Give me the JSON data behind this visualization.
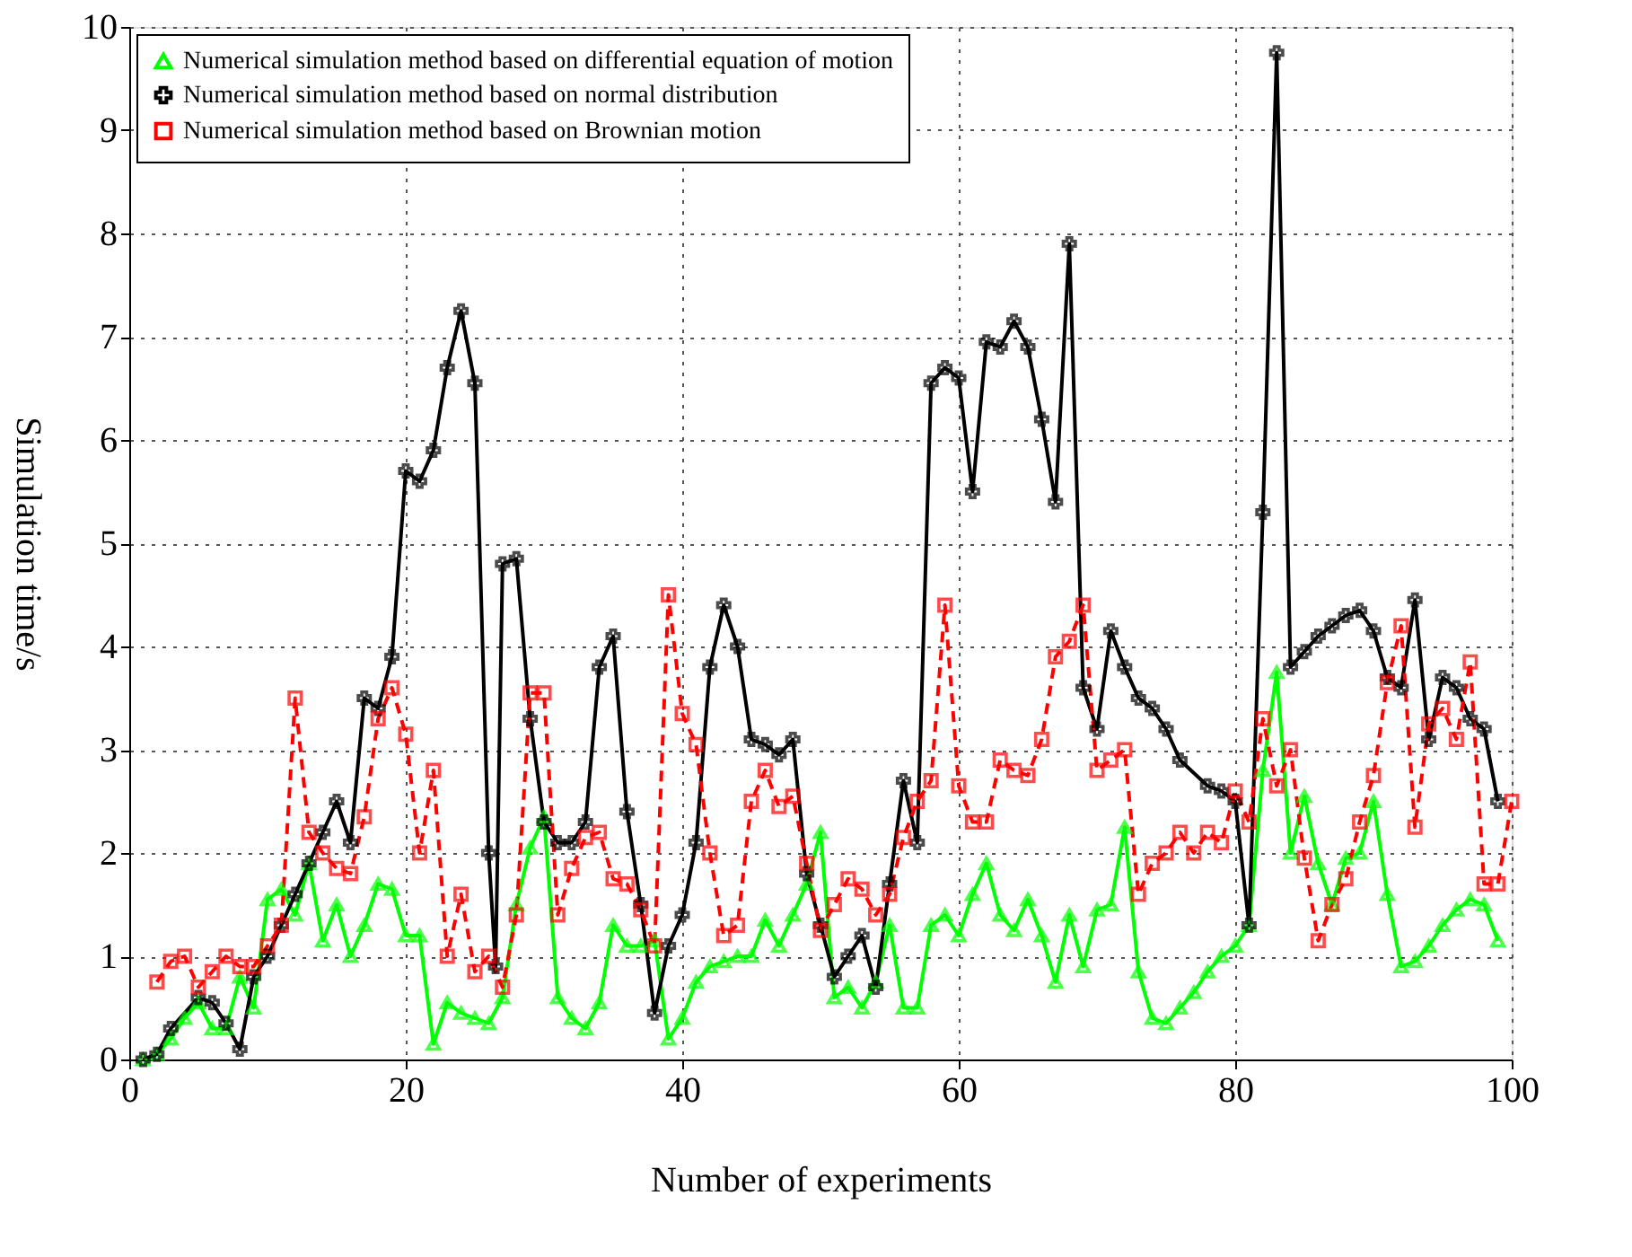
{
  "chart_data": {
    "type": "line",
    "xlabel": "Number of experiments",
    "ylabel": "Simulation time/s",
    "xlim": [
      0,
      100
    ],
    "xticks": [
      0,
      20,
      40,
      60,
      80,
      100
    ],
    "ylim": [
      0,
      10
    ],
    "yticks": [
      0,
      1,
      2,
      3,
      4,
      5,
      6,
      7,
      8,
      9,
      10
    ],
    "grid": true,
    "legend": "top left",
    "series": [
      {
        "name": "Numerical simulation method based on differential equation of motion",
        "color": "#00ff00",
        "marker": "triangle",
        "line_style": "solid",
        "x": [
          1,
          2,
          3,
          4,
          5,
          6,
          7,
          8,
          9,
          10,
          11,
          12,
          13,
          14,
          15,
          16,
          17,
          18,
          19,
          20,
          21,
          22,
          23,
          24,
          25,
          26,
          27,
          28,
          29,
          30,
          31,
          32,
          33,
          34,
          35,
          36,
          37,
          38,
          39,
          40,
          41,
          42,
          43,
          44,
          45,
          46,
          47,
          48,
          49,
          50,
          51,
          52,
          53,
          54,
          55,
          56,
          57,
          58,
          59,
          60,
          61,
          62,
          63,
          64,
          65,
          66,
          67,
          68,
          69,
          70,
          71,
          72,
          73,
          74,
          75,
          76,
          77,
          78,
          79,
          80,
          81,
          82,
          83,
          84,
          85,
          86,
          87,
          88,
          89,
          90,
          91,
          92,
          93,
          94,
          95,
          96,
          97,
          98,
          99
        ],
        "values": [
          0,
          0.05,
          0.2,
          0.4,
          0.55,
          0.3,
          0.3,
          0.8,
          0.5,
          1.55,
          1.65,
          1.4,
          1.9,
          1.15,
          1.5,
          1.0,
          1.3,
          1.7,
          1.65,
          1.2,
          1.2,
          0.15,
          0.55,
          0.45,
          0.4,
          0.35,
          0.6,
          1.5,
          2.05,
          2.35,
          0.6,
          0.4,
          0.3,
          0.55,
          1.3,
          1.1,
          1.1,
          1.15,
          0.2,
          0.4,
          0.75,
          0.9,
          0.95,
          1.0,
          1.0,
          1.35,
          1.1,
          1.4,
          1.7,
          2.2,
          0.6,
          0.7,
          0.5,
          0.75,
          1.3,
          0.5,
          0.5,
          1.3,
          1.4,
          1.2,
          1.6,
          1.9,
          1.4,
          1.25,
          1.55,
          1.2,
          0.75,
          1.4,
          0.9,
          1.45,
          1.5,
          2.25,
          0.85,
          0.4,
          0.35,
          0.5,
          0.65,
          0.85,
          1.0,
          1.1,
          1.3,
          2.8,
          3.75,
          2.0,
          2.55,
          1.9,
          1.5,
          1.95,
          2.0,
          2.5,
          1.6,
          0.9,
          0.95,
          1.1,
          1.3,
          1.45,
          1.55,
          1.5,
          1.15
        ]
      },
      {
        "name": "Numerical simulation method based on normal distribution",
        "color": "#000000",
        "marker": "cross",
        "line_style": "solid",
        "x": [
          1,
          2,
          3,
          5,
          6,
          7,
          8,
          9,
          10,
          11,
          12,
          13,
          14,
          15,
          16,
          17,
          18,
          19,
          20,
          21,
          22,
          23,
          24,
          25,
          26,
          26.5,
          27,
          28,
          29,
          30,
          31,
          32,
          33,
          34,
          35,
          36,
          37,
          38,
          39,
          40,
          41,
          42,
          43,
          44,
          45,
          46,
          47,
          48,
          49,
          50,
          51,
          52,
          53,
          54,
          55,
          56,
          57,
          58,
          59,
          60,
          61,
          62,
          63,
          64,
          65,
          66,
          67,
          68,
          69,
          70,
          71,
          72,
          73,
          74,
          75,
          76,
          78,
          79,
          80,
          81,
          82,
          83,
          84,
          85,
          86,
          87,
          88,
          89,
          90,
          91,
          92,
          93,
          94,
          95,
          96,
          97,
          98,
          99
        ],
        "values": [
          0,
          0.05,
          0.3,
          0.6,
          0.55,
          0.35,
          0.1,
          0.8,
          1.0,
          1.3,
          1.6,
          1.9,
          2.2,
          2.5,
          2.1,
          3.5,
          3.4,
          3.9,
          5.7,
          5.6,
          5.9,
          6.7,
          7.25,
          6.55,
          2.0,
          0.9,
          4.8,
          4.85,
          3.3,
          2.3,
          2.1,
          2.1,
          2.3,
          3.8,
          4.1,
          2.4,
          1.5,
          0.45,
          1.1,
          1.4,
          2.1,
          3.8,
          4.4,
          4.0,
          3.1,
          3.05,
          2.95,
          3.1,
          1.8,
          1.3,
          0.8,
          1.0,
          1.2,
          0.7,
          1.7,
          2.7,
          2.1,
          6.55,
          6.7,
          6.6,
          5.5,
          6.95,
          6.9,
          7.15,
          6.9,
          6.2,
          5.4,
          7.9,
          3.6,
          3.2,
          4.15,
          3.8,
          3.5,
          3.4,
          3.2,
          2.9,
          2.65,
          2.6,
          2.5,
          1.3,
          5.3,
          9.75,
          3.8,
          3.95,
          4.1,
          4.2,
          4.3,
          4.35,
          4.15,
          3.7,
          3.6,
          4.45,
          3.1,
          3.7,
          3.6,
          3.3,
          3.2,
          2.5
        ]
      },
      {
        "name": "Numerical simulation method based on Brownian motion",
        "color": "#ff0000",
        "marker": "square",
        "line_style": "dashed",
        "x": [
          2,
          3,
          4,
          5,
          6,
          7,
          8,
          9,
          10,
          11,
          12,
          13,
          14,
          15,
          16,
          17,
          18,
          19,
          20,
          21,
          22,
          23,
          24,
          25,
          26,
          27,
          28,
          29,
          30,
          31,
          32,
          33,
          34,
          35,
          36,
          37,
          38,
          39,
          40,
          41,
          42,
          43,
          44,
          45,
          46,
          47,
          48,
          49,
          50,
          51,
          52,
          53,
          54,
          55,
          56,
          57,
          58,
          59,
          60,
          61,
          62,
          63,
          64,
          65,
          66,
          67,
          68,
          69,
          70,
          71,
          72,
          73,
          74,
          75,
          76,
          77,
          78,
          79,
          80,
          81,
          82,
          83,
          84,
          85,
          86,
          87,
          88,
          89,
          90,
          91,
          92,
          93,
          94,
          95,
          96,
          97,
          98,
          99,
          100
        ],
        "values": [
          0.75,
          0.95,
          1.0,
          0.7,
          0.85,
          1.0,
          0.9,
          0.9,
          1.1,
          1.3,
          3.5,
          2.2,
          2.0,
          1.85,
          1.8,
          2.35,
          3.3,
          3.6,
          3.15,
          2.0,
          2.8,
          1.0,
          1.6,
          0.85,
          1.0,
          0.7,
          1.4,
          3.55,
          3.55,
          1.4,
          1.85,
          2.15,
          2.2,
          1.75,
          1.7,
          1.45,
          1.1,
          4.5,
          3.35,
          3.05,
          2.0,
          1.2,
          1.3,
          2.5,
          2.8,
          2.45,
          2.55,
          1.9,
          1.25,
          1.5,
          1.75,
          1.65,
          1.4,
          1.6,
          2.15,
          2.5,
          2.7,
          4.4,
          2.65,
          2.3,
          2.3,
          2.9,
          2.8,
          2.75,
          3.1,
          3.9,
          4.05,
          4.4,
          2.8,
          2.9,
          3.0,
          1.6,
          1.9,
          2.0,
          2.2,
          2.0,
          2.2,
          2.1,
          2.6,
          2.3,
          3.3,
          2.65,
          3.0,
          1.95,
          1.15,
          1.5,
          1.75,
          2.3,
          2.75,
          3.65,
          4.2,
          2.25,
          3.25,
          3.4,
          3.1,
          3.85,
          1.7,
          1.7,
          2.5
        ]
      }
    ]
  }
}
